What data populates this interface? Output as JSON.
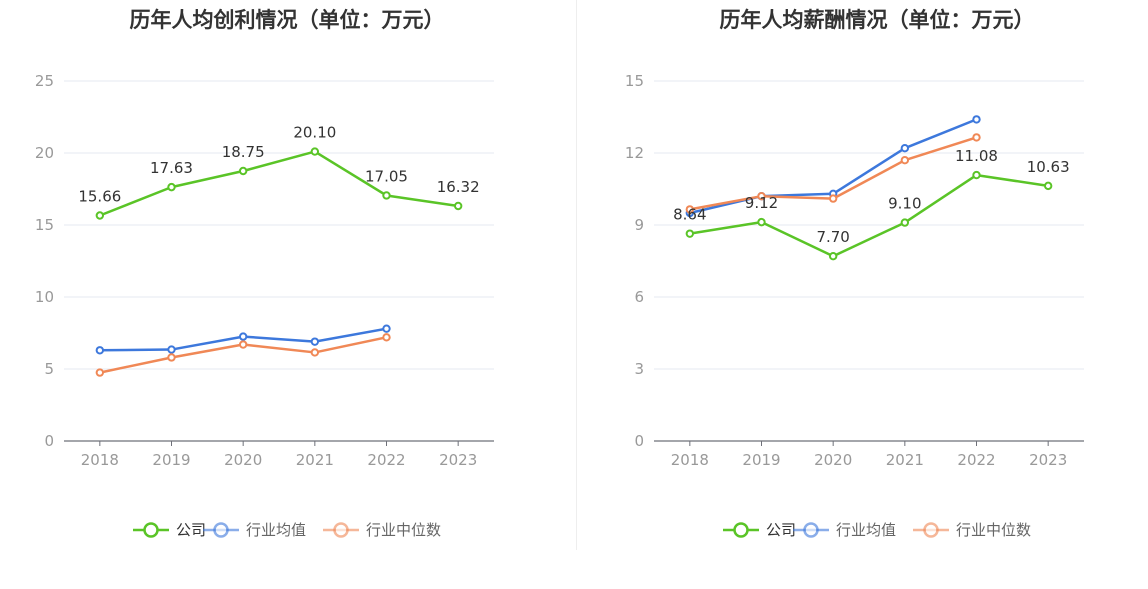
{
  "chart_data": [
    {
      "type": "line",
      "title": "历年人均创利情况（单位：万元）",
      "categories": [
        "2018",
        "2019",
        "2020",
        "2021",
        "2022",
        "2023"
      ],
      "ylim": [
        0,
        25
      ],
      "yticks": [
        0,
        5,
        10,
        15,
        20,
        25
      ],
      "grid": true,
      "legend_position": "bottom-center",
      "series": [
        {
          "name": "公司",
          "color": "#5ac427",
          "values": [
            15.66,
            17.63,
            18.75,
            20.1,
            17.05,
            16.32
          ],
          "labels": [
            "15.66",
            "17.63",
            "18.75",
            "20.10",
            "17.05",
            "16.32"
          ]
        },
        {
          "name": "行业均值",
          "color": "#3d78dc",
          "values": [
            6.3,
            6.35,
            7.25,
            6.9,
            7.8,
            null
          ]
        },
        {
          "name": "行业中位数",
          "color": "#f08856",
          "values": [
            4.75,
            5.8,
            6.7,
            6.15,
            7.2,
            null
          ]
        }
      ]
    },
    {
      "type": "line",
      "title": "历年人均薪酬情况（单位：万元）",
      "categories": [
        "2018",
        "2019",
        "2020",
        "2021",
        "2022",
        "2023"
      ],
      "ylim": [
        0,
        15
      ],
      "yticks": [
        0,
        3,
        6,
        9,
        12,
        15
      ],
      "grid": true,
      "legend_position": "bottom-center",
      "series": [
        {
          "name": "公司",
          "color": "#5ac427",
          "values": [
            8.64,
            9.12,
            7.7,
            9.1,
            11.08,
            10.63
          ],
          "labels": [
            "8.64",
            "9.12",
            "7.70",
            "9.10",
            "11.08",
            "10.63"
          ]
        },
        {
          "name": "行业均值",
          "color": "#3d78dc",
          "values": [
            9.5,
            10.2,
            10.3,
            12.2,
            13.4,
            null
          ]
        },
        {
          "name": "行业中位数",
          "color": "#f08856",
          "values": [
            9.65,
            10.2,
            10.1,
            11.7,
            12.65,
            null
          ]
        }
      ]
    }
  ]
}
